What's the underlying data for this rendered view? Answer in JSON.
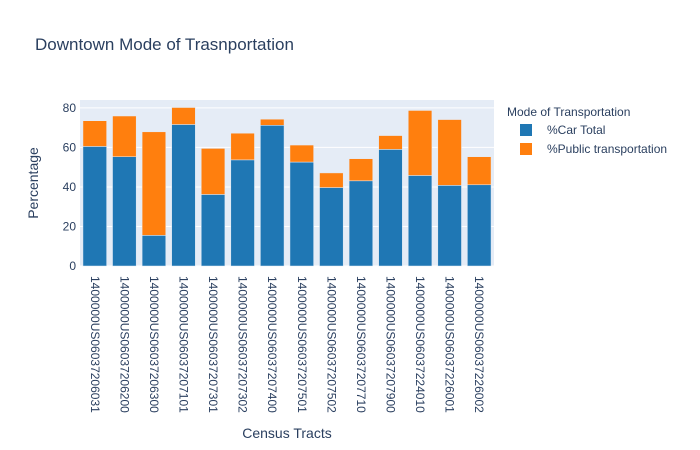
{
  "chart_data": {
    "type": "bar",
    "barmode": "stack",
    "title": "Downtown Mode of Trasnportation",
    "xlabel": "Census Tracts",
    "ylabel": "Percentage",
    "ylim": [
      0,
      84
    ],
    "yticks": [
      0,
      20,
      40,
      60,
      80
    ],
    "grid": true,
    "legend_title": "Mode of Transportation",
    "legend_position": "right",
    "categories": [
      "1400000US06037206031",
      "1400000US06037206200",
      "1400000US06037206300",
      "1400000US06037207101",
      "1400000US06037207301",
      "1400000US06037207302",
      "1400000US06037207400",
      "1400000US06037207501",
      "1400000US06037207502",
      "1400000US06037207710",
      "1400000US06037207900",
      "1400000US06037224010",
      "1400000US06037226001",
      "1400000US06037226002"
    ],
    "series": [
      {
        "name": "%Car Total",
        "color": "#1f77b4",
        "values": [
          60.5,
          55.3,
          15.5,
          71.6,
          36.2,
          53.7,
          71.2,
          52.6,
          39.7,
          43.1,
          59.0,
          45.8,
          40.8,
          41.1
        ]
      },
      {
        "name": "%Public transportation",
        "color": "#ff7f0e",
        "values": [
          13.0,
          20.6,
          52.4,
          8.6,
          23.3,
          13.5,
          3.1,
          8.6,
          7.4,
          11.2,
          7.0,
          32.9,
          33.3,
          14.2
        ]
      }
    ]
  }
}
